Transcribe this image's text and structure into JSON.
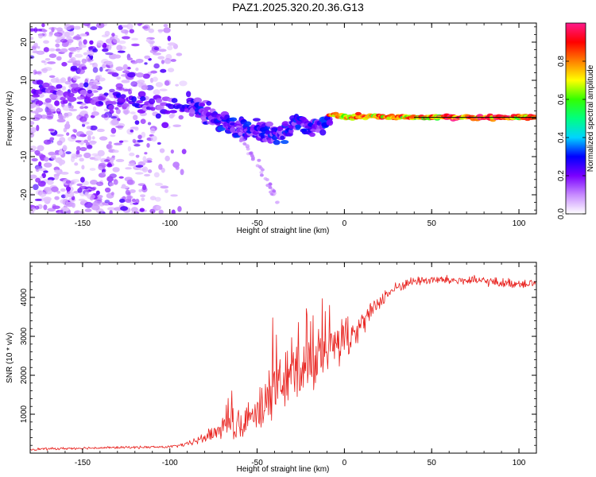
{
  "figure_title": "PAZ1.2025.320.20.36.G13",
  "colors": {
    "snr_line": "#e8201c",
    "ridge_line": "#000000",
    "axis": "#000000",
    "background": "#ffffff"
  },
  "chart_data": [
    {
      "type": "heatmap",
      "name": "spectrogram",
      "title": "",
      "xlabel": "Height of straight line (km)",
      "ylabel": "Frequency (Hz)",
      "xlim": [
        -180,
        110
      ],
      "ylim": [
        -25,
        25
      ],
      "xticks": [
        -150,
        -100,
        -50,
        0,
        50,
        100
      ],
      "xtick_labels": [
        "-150",
        "-100",
        "-50",
        "0",
        "50",
        "100"
      ],
      "yticks": [
        -20,
        -10,
        0,
        10,
        20
      ],
      "ytick_labels": [
        "-20",
        "-10",
        "0",
        "10",
        "20"
      ],
      "ridge": {
        "height_km": [
          -178,
          -165,
          -150,
          -135,
          -120,
          -100,
          -85,
          -75,
          -65,
          -55,
          -45,
          -35,
          -28,
          -20,
          -12,
          -8,
          0,
          20,
          40,
          60,
          80,
          100,
          110
        ],
        "frequency_hz": [
          7,
          7,
          7.5,
          5,
          4,
          3,
          3,
          0,
          -2,
          -3,
          -4,
          -4,
          -1,
          -2,
          -2,
          1,
          0.5,
          0.5,
          0.3,
          0.3,
          0.3,
          0.3,
          0.3
        ]
      },
      "noise_region_km": [
        -180,
        -90
      ],
      "colorbar": {
        "label": "Normalized spectral amplitude",
        "range": [
          0,
          1
        ],
        "ticks": [
          0.0,
          0.2,
          0.4,
          0.6,
          0.8
        ],
        "tick_labels": [
          "0.0",
          "0.2",
          "0.4",
          "0.6",
          "0.8"
        ],
        "colormap": [
          "#ffffff",
          "#c78bff",
          "#7a00ff",
          "#0000ff",
          "#00d4ff",
          "#00ff80",
          "#33ff00",
          "#ffff00",
          "#ff8000",
          "#ff0000",
          "#ff1a8c"
        ]
      }
    },
    {
      "type": "line",
      "name": "snr",
      "title": "",
      "xlabel": "Height of straight line (km)",
      "ylabel": "SNR (10 * v/v)",
      "xlim": [
        -180,
        110
      ],
      "ylim": [
        0,
        4900
      ],
      "xticks": [
        -150,
        -100,
        -50,
        0,
        50,
        100
      ],
      "xtick_labels": [
        "-150",
        "-100",
        "-50",
        "0",
        "50",
        "100"
      ],
      "yticks": [
        1000,
        2000,
        3000,
        4000
      ],
      "ytick_labels": [
        "1000",
        "2000",
        "3000",
        "4000"
      ],
      "series": [
        {
          "name": "SNR",
          "x": [
            -180,
            -150,
            -120,
            -100,
            -90,
            -80,
            -70,
            -60,
            -50,
            -45,
            -40,
            -35,
            -30,
            -25,
            -20,
            -15,
            -10,
            -5,
            0,
            5,
            10,
            15,
            20,
            25,
            30,
            35,
            40,
            50,
            60,
            70,
            80,
            90,
            100,
            110
          ],
          "y": [
            100,
            130,
            150,
            160,
            230,
            400,
            650,
            800,
            980,
            1300,
            1600,
            1800,
            2000,
            2100,
            2200,
            2400,
            2600,
            2750,
            2900,
            3100,
            3300,
            3600,
            3900,
            4100,
            4250,
            4350,
            4420,
            4450,
            4440,
            4430,
            4420,
            4370,
            4360,
            4370
          ],
          "fluctuation": [
            40,
            40,
            40,
            40,
            70,
            180,
            380,
            450,
            600,
            700,
            800,
            850,
            900,
            850,
            800,
            750,
            700,
            650,
            600,
            500,
            400,
            300,
            250,
            200,
            180,
            160,
            150,
            150,
            150,
            150,
            150,
            150,
            150,
            150
          ]
        }
      ]
    }
  ]
}
